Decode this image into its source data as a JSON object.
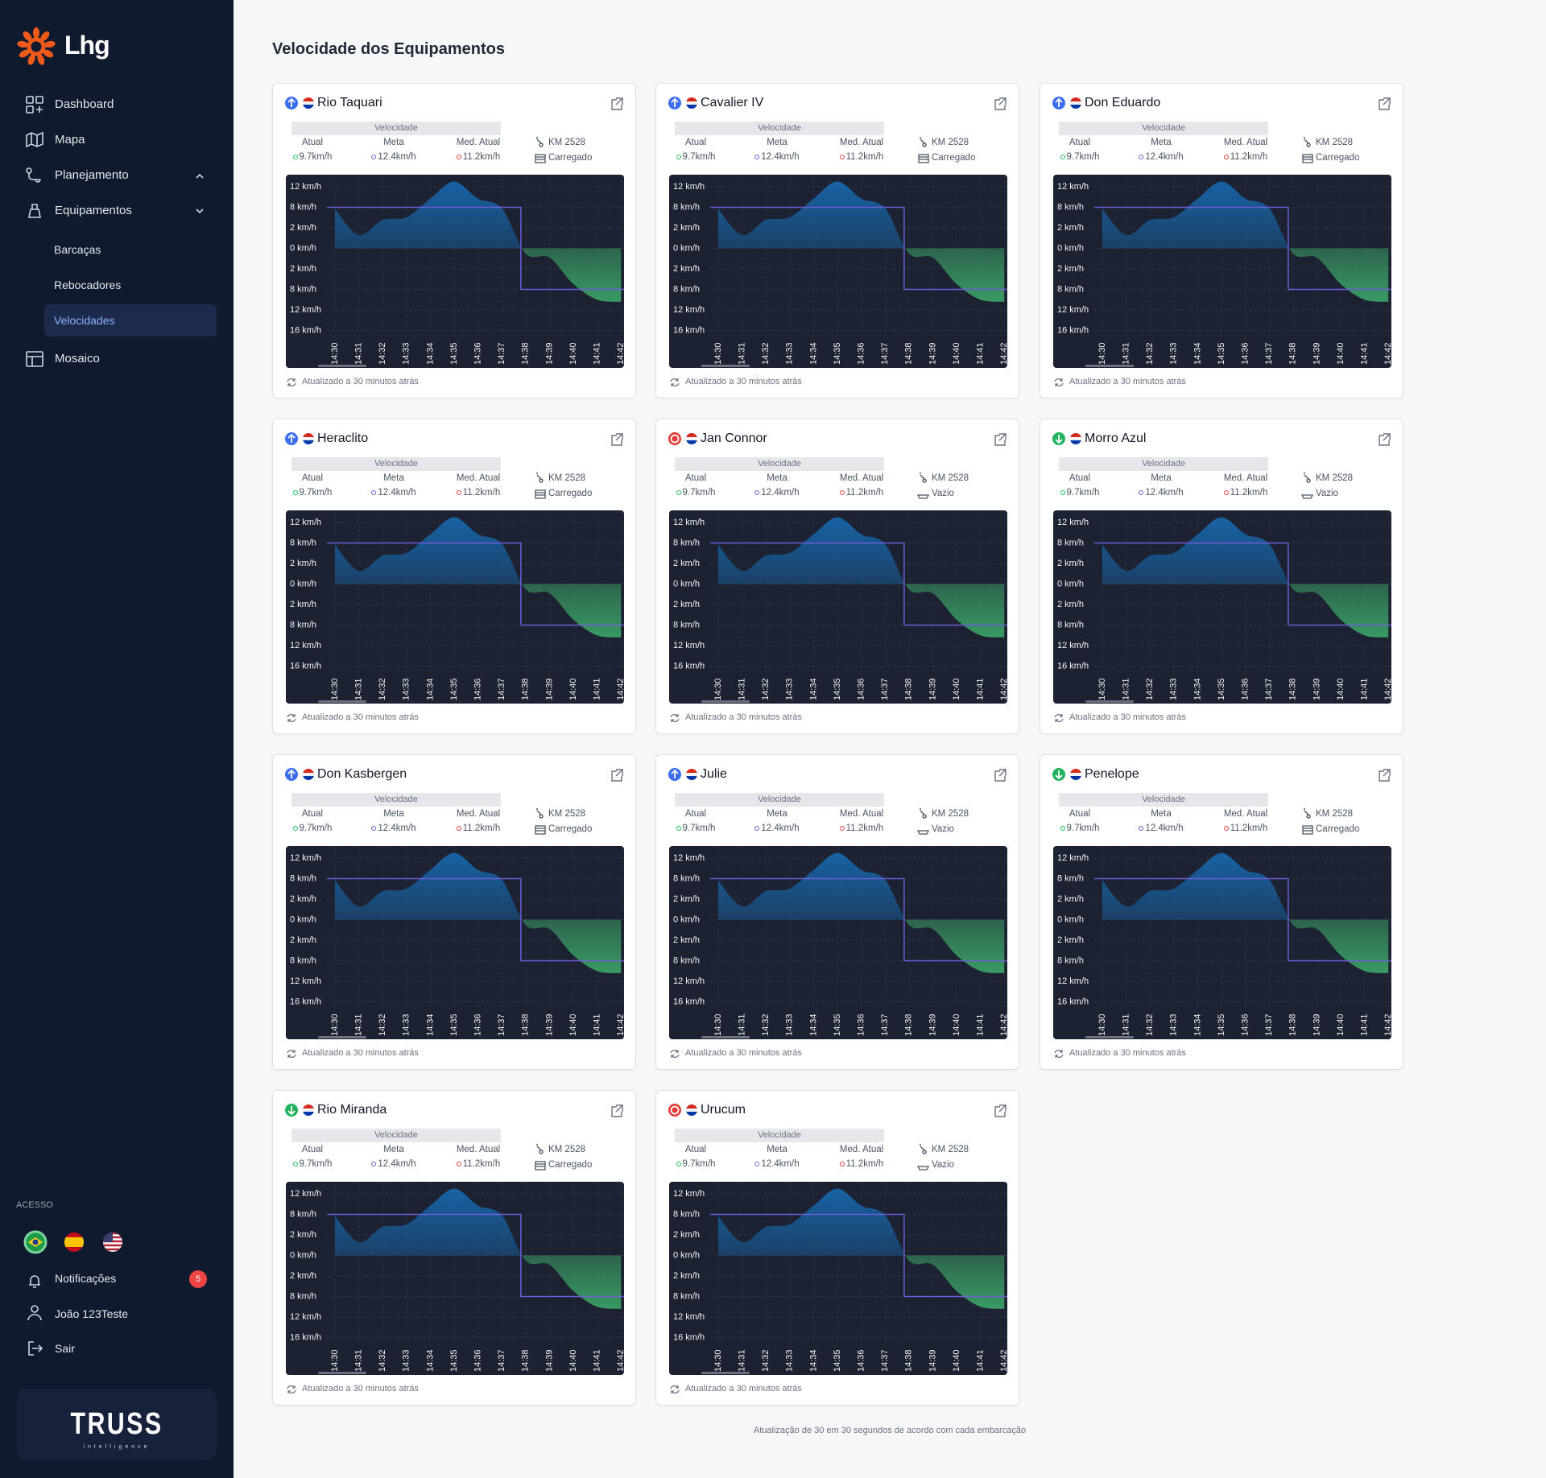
{
  "sidebar": {
    "brand": "Lhg",
    "menu": [
      "Dashboard",
      "Mapa",
      "Planejamento",
      "Equipamentos"
    ],
    "submenu": [
      "Barcaças",
      "Rebocadores",
      "Velocidades"
    ],
    "active_submenu": 2,
    "menu_extra": "Mosaico",
    "access_label": "ACESSO",
    "notifications": {
      "label": "Notificações",
      "count": 5
    },
    "user": "João 123Teste",
    "logout": "Sair",
    "partner": "TRUSS",
    "partner_sub": "intelligence"
  },
  "page": {
    "title": "Velocidade dos Equipamentos",
    "footer": "Atualização de 30 em 30 segundos de acordo com cada embarcação"
  },
  "card_common": {
    "speed_label": "Velocidade",
    "columns": [
      "Atual",
      "Meta",
      "Med. Atual"
    ],
    "values": [
      "9.7km/h",
      "12.4km/h",
      "11.2km/h"
    ],
    "km": "KM 2528",
    "updated": "Atualizado a 30 minutos atrás"
  },
  "cards": [
    {
      "name": "Rio Taquari",
      "status": "up",
      "load": "Carregado"
    },
    {
      "name": "Cavalier IV",
      "status": "up",
      "load": "Carregado"
    },
    {
      "name": "Don Eduardo",
      "status": "up",
      "load": "Carregado"
    },
    {
      "name": "Heraclito",
      "status": "up",
      "load": "Carregado"
    },
    {
      "name": "Jan Connor",
      "status": "stop",
      "load": "Vazio"
    },
    {
      "name": "Morro Azul",
      "status": "down",
      "load": "Vazio"
    },
    {
      "name": "Don Kasbergen",
      "status": "up",
      "load": "Carregado"
    },
    {
      "name": "Julie",
      "status": "up",
      "load": "Vazio"
    },
    {
      "name": "Penelope",
      "status": "down",
      "load": "Carregado"
    },
    {
      "name": "Rio Miranda",
      "status": "down",
      "load": "Carregado"
    },
    {
      "name": "Urucum",
      "status": "stop",
      "load": "Vazio"
    }
  ],
  "chart_data": {
    "type": "area",
    "categories": [
      "14:30",
      "14:31",
      "14:32",
      "14:33",
      "14:34",
      "14:35",
      "14:36",
      "14:37",
      "14:38",
      "14:39",
      "14:40",
      "14:41",
      "14:42"
    ],
    "series": [
      {
        "type": "area",
        "color": "#1766aa",
        "negative_color": "#4ade80",
        "values": [
          7.4,
          1.3,
          4.3,
          5.1,
          9.7,
          13,
          9.7,
          7.7,
          -0.5,
          -0.9,
          -6.4,
          -10,
          -10.4
        ]
      },
      {
        "type": "step",
        "color": "#6d5fd6",
        "values": [
          8,
          8,
          8,
          8,
          8,
          8,
          8,
          8,
          -8,
          -8,
          -8,
          -8,
          -8
        ]
      }
    ],
    "ylim": [
      -16,
      14
    ],
    "yticks": [
      {
        "value": 12,
        "label": "12 km/h"
      },
      {
        "value": 8,
        "label": "8 km/h"
      },
      {
        "value": 2,
        "label": "2 km/h"
      },
      {
        "value": 0,
        "label": "0 km/h"
      },
      {
        "value": -2,
        "label": "2 km/h"
      },
      {
        "value": -8,
        "label": "8 km/h"
      },
      {
        "value": -12,
        "label": "12 km/h"
      },
      {
        "value": -16,
        "label": "16 km/h"
      }
    ],
    "grid": true
  }
}
